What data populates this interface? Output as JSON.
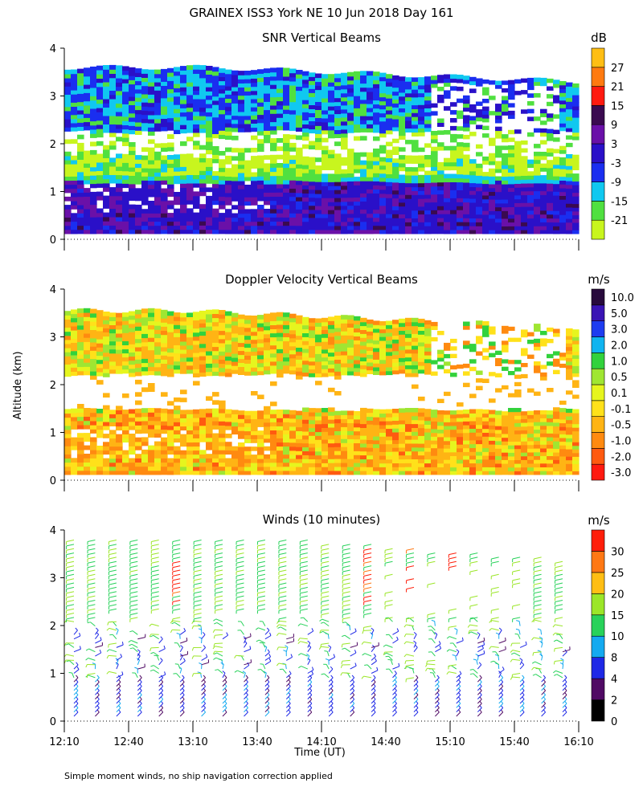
{
  "figure": {
    "title": "GRAINEX ISS3 York NE  10 Jun 2018 Day 161",
    "ylabel": "Altitude (km)",
    "xlabel": "Time (UT)",
    "footnote": "Simple moment winds, no ship navigation correction applied"
  },
  "chart_data": [
    {
      "type": "heatmap",
      "title": "SNR Vertical Beams",
      "unit": "dB",
      "x_ticks": [
        "12:10",
        "12:40",
        "13:10",
        "13:40",
        "14:10",
        "14:40",
        "15:10",
        "15:40",
        "16:10"
      ],
      "y_ticks": [
        "0",
        "1",
        "2",
        "3",
        "4"
      ],
      "ylim": [
        0,
        4
      ],
      "color_bins": [
        {
          "label": "",
          "color": "#c8f51e"
        },
        {
          "label": "-21",
          "color": "#50e040"
        },
        {
          "label": "-15",
          "color": "#10c8f0"
        },
        {
          "label": "-9",
          "color": "#1a2ef0"
        },
        {
          "label": "-3",
          "color": "#2a10c8"
        },
        {
          "label": "3",
          "color": "#6a10a8"
        },
        {
          "label": "9",
          "color": "#3a0a50"
        },
        {
          "label": "15",
          "color": "#ff1a10"
        },
        {
          "label": "21",
          "color": "#ff7a10"
        },
        {
          "label": "27",
          "color": "#ffbe14"
        }
      ],
      "layers": [
        {
          "level": "-21",
          "altitude_km": [
            1.25,
            1.75
          ]
        },
        {
          "level": "-15",
          "altitude_km": [
            2.2,
            3.6
          ]
        },
        {
          "level": "-9",
          "altitude_km": [
            2.5,
            3.5
          ]
        },
        {
          "level": "-3",
          "altitude_km": [
            0.1,
            1.2
          ]
        }
      ]
    },
    {
      "type": "heatmap",
      "title": "Doppler Velocity Vertical Beams",
      "unit": "m/s",
      "x_ticks": [
        "12:10",
        "12:40",
        "13:10",
        "13:40",
        "14:10",
        "14:40",
        "15:10",
        "15:40",
        "16:10"
      ],
      "y_ticks": [
        "0",
        "1",
        "2",
        "3",
        "4"
      ],
      "ylim": [
        0,
        4
      ],
      "color_bins": [
        {
          "label": "-3.0",
          "color": "#ff1a10"
        },
        {
          "label": "-2.0",
          "color": "#ff5a10"
        },
        {
          "label": "-1.0",
          "color": "#ff8a10"
        },
        {
          "label": "-0.5",
          "color": "#ffb414"
        },
        {
          "label": "-0.1",
          "color": "#ffe11a"
        },
        {
          "label": "0.1",
          "color": "#e6f51e"
        },
        {
          "label": "0.5",
          "color": "#9fe632"
        },
        {
          "label": "1.0",
          "color": "#32d23c"
        },
        {
          "label": "2.0",
          "color": "#10b4f0"
        },
        {
          "label": "3.0",
          "color": "#1e3cf0"
        },
        {
          "label": "5.0",
          "color": "#3a14b4"
        },
        {
          "label": "10.0",
          "color": "#280a3c"
        }
      ]
    },
    {
      "type": "scatter",
      "subtype": "wind-barbs",
      "title": "Winds (10 minutes)",
      "unit": "m/s",
      "x_ticks": [
        "12:10",
        "12:40",
        "13:10",
        "13:40",
        "14:10",
        "14:40",
        "15:10",
        "15:40",
        "16:10"
      ],
      "y_ticks": [
        "0",
        "1",
        "2",
        "3",
        "4"
      ],
      "ylim": [
        0,
        4
      ],
      "color_bins": [
        {
          "label": "0",
          "color": "#000000"
        },
        {
          "label": "2",
          "color": "#500a64"
        },
        {
          "label": "4",
          "color": "#1e28e6"
        },
        {
          "label": "8",
          "color": "#14aaf0"
        },
        {
          "label": "10",
          "color": "#28d25a"
        },
        {
          "label": "15",
          "color": "#9be628"
        },
        {
          "label": "20",
          "color": "#ffbe14"
        },
        {
          "label": "25",
          "color": "#ff7814"
        },
        {
          "label": "30",
          "color": "#ff1e0a"
        }
      ]
    }
  ]
}
